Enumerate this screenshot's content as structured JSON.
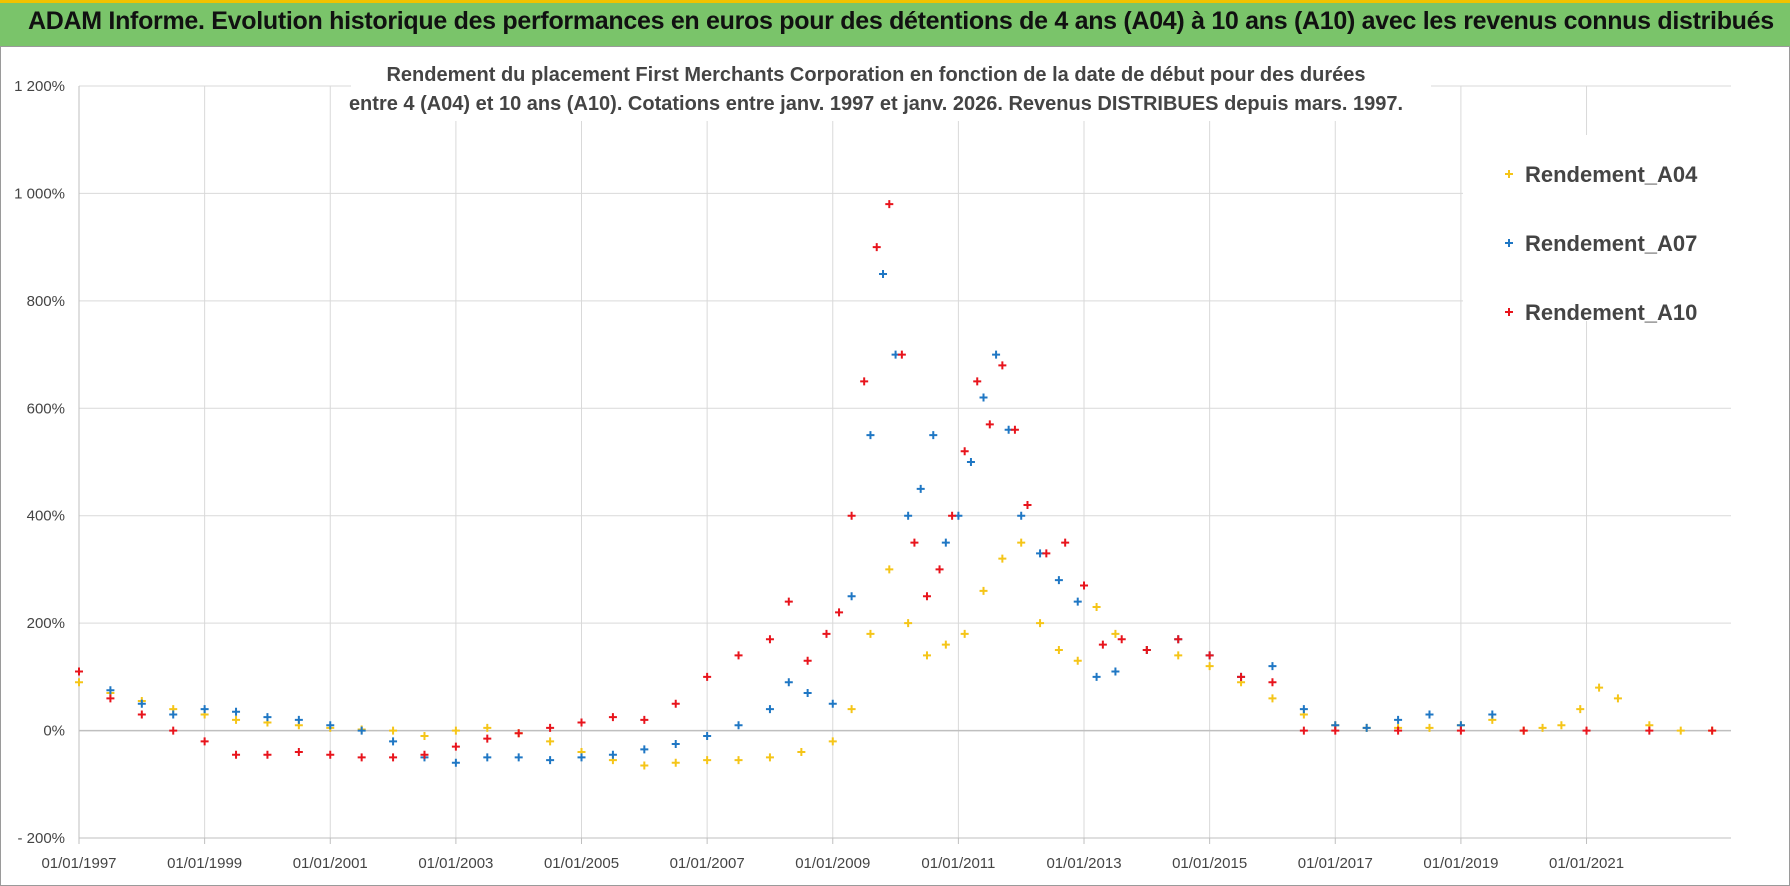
{
  "banner": {
    "title": "ADAM Informe. Evolution historique des performances en euros pour des détentions de 4 ans (A04) à 10 ans (A10) avec les revenus connus distribués"
  },
  "colors": {
    "banner_bg": "#7ac46a",
    "banner_accent": "#f2c200",
    "A04": "#f5c518",
    "A07": "#1f77c4",
    "A10": "#e8141c"
  },
  "chart_data": {
    "type": "scatter",
    "title_line1": "Rendement du placement First Merchants Corporation en fonction de la date de début pour des durées",
    "title_line2": "entre 4 (A04) et 10 ans (A10).  Cotations entre janv. 1997 et janv. 2026. Revenus DISTRIBUES depuis mars. 1997.",
    "xlabel": "",
    "ylabel": "",
    "xlim": [
      1997.0,
      2023.3
    ],
    "ylim": [
      -200,
      1200
    ],
    "y_ticks": [
      -200,
      0,
      200,
      400,
      600,
      800,
      1000,
      1200
    ],
    "y_tick_labels": [
      "- 200%",
      "0%",
      "200%",
      "400%",
      "600%",
      "800%",
      "1 000%",
      "1 200%"
    ],
    "x_ticks": [
      1997,
      1999,
      2001,
      2003,
      2005,
      2007,
      2009,
      2011,
      2013,
      2015,
      2017,
      2019,
      2021
    ],
    "x_tick_labels": [
      "01/01/1997",
      "01/01/1999",
      "01/01/2001",
      "01/01/2003",
      "01/01/2005",
      "01/01/2007",
      "01/01/2009",
      "01/01/2011",
      "01/01/2013",
      "01/01/2015",
      "01/01/2017",
      "01/01/2019",
      "01/01/2021"
    ],
    "legend_position": "top-right",
    "marker": "+",
    "series": [
      {
        "name": "Rendement_A04",
        "color": "#f5c518",
        "x": [
          1997.0,
          1997.5,
          1998.0,
          1998.5,
          1999.0,
          1999.5,
          2000.0,
          2000.5,
          2001.0,
          2001.5,
          2002.0,
          2002.5,
          2003.0,
          2003.5,
          2004.0,
          2004.5,
          2005.0,
          2005.5,
          2006.0,
          2006.5,
          2007.0,
          2007.5,
          2008.0,
          2008.5,
          2009.0,
          2009.3,
          2009.6,
          2009.9,
          2010.2,
          2010.5,
          2010.8,
          2011.1,
          2011.4,
          2011.7,
          2012.0,
          2012.3,
          2012.6,
          2012.9,
          2013.2,
          2013.5,
          2014.0,
          2014.5,
          2015.0,
          2015.5,
          2016.0,
          2016.5,
          2017.0,
          2017.5,
          2018.0,
          2018.5,
          2019.0,
          2019.5,
          2020.0,
          2020.3,
          2020.6,
          2020.9,
          2021.2,
          2021.5,
          2022.0,
          2022.5,
          2023.0
        ],
        "values": [
          90,
          70,
          55,
          40,
          30,
          20,
          15,
          10,
          5,
          2,
          0,
          -10,
          0,
          5,
          -5,
          -20,
          -40,
          -55,
          -65,
          -60,
          -55,
          -55,
          -50,
          -40,
          -20,
          40,
          180,
          300,
          200,
          140,
          160,
          180,
          260,
          320,
          350,
          200,
          150,
          130,
          230,
          180,
          150,
          140,
          120,
          90,
          60,
          30,
          10,
          5,
          5,
          5,
          10,
          20,
          0,
          5,
          10,
          40,
          80,
          60,
          10,
          0,
          0
        ]
      },
      {
        "name": "Rendement_A07",
        "color": "#1f77c4",
        "x": [
          1997.0,
          1997.5,
          1998.0,
          1998.5,
          1999.0,
          1999.5,
          2000.0,
          2000.5,
          2001.0,
          2001.5,
          2002.0,
          2002.5,
          2003.0,
          2003.5,
          2004.0,
          2004.5,
          2005.0,
          2005.5,
          2006.0,
          2006.5,
          2007.0,
          2007.5,
          2008.0,
          2008.3,
          2008.6,
          2009.0,
          2009.3,
          2009.6,
          2009.8,
          2010.0,
          2010.2,
          2010.4,
          2010.6,
          2010.8,
          2011.0,
          2011.2,
          2011.4,
          2011.6,
          2011.8,
          2012.0,
          2012.3,
          2012.6,
          2012.9,
          2013.2,
          2013.5,
          2014.0,
          2014.5,
          2015.0,
          2015.5,
          2016.0,
          2016.5,
          2017.0,
          2017.5,
          2018.0,
          2018.5,
          2019.0,
          2019.5
        ],
        "values": [
          110,
          75,
          50,
          30,
          40,
          35,
          25,
          20,
          10,
          0,
          -20,
          -50,
          -60,
          -50,
          -50,
          -55,
          -50,
          -45,
          -35,
          -25,
          -10,
          10,
          40,
          90,
          70,
          50,
          250,
          550,
          850,
          700,
          400,
          450,
          550,
          350,
          400,
          500,
          620,
          700,
          560,
          400,
          330,
          280,
          240,
          100,
          110,
          150,
          170,
          140,
          100,
          120,
          40,
          10,
          5,
          20,
          30,
          10,
          30
        ]
      },
      {
        "name": "Rendement_A10",
        "color": "#e8141c",
        "x": [
          1997.0,
          1997.5,
          1998.0,
          1998.5,
          1999.0,
          1999.5,
          2000.0,
          2000.5,
          2001.0,
          2001.5,
          2002.0,
          2002.5,
          2003.0,
          2003.5,
          2004.0,
          2004.5,
          2005.0,
          2005.5,
          2006.0,
          2006.5,
          2007.0,
          2007.5,
          2008.0,
          2008.3,
          2008.6,
          2008.9,
          2009.1,
          2009.3,
          2009.5,
          2009.7,
          2009.9,
          2010.1,
          2010.3,
          2010.5,
          2010.7,
          2010.9,
          2011.1,
          2011.3,
          2011.5,
          2011.7,
          2011.9,
          2012.1,
          2012.4,
          2012.7,
          2013.0,
          2013.3,
          2013.6,
          2014.0,
          2014.5,
          2015.0,
          2015.5,
          2016.0,
          2016.5,
          2017.0,
          2018.0,
          2019.0,
          2020.0,
          2021.0,
          2022.0,
          2023.0
        ],
        "values": [
          110,
          60,
          30,
          0,
          -20,
          -45,
          -45,
          -40,
          -45,
          -50,
          -50,
          -45,
          -30,
          -15,
          -5,
          5,
          15,
          25,
          20,
          50,
          100,
          140,
          170,
          240,
          130,
          180,
          220,
          400,
          650,
          900,
          980,
          700,
          350,
          250,
          300,
          400,
          520,
          650,
          570,
          680,
          560,
          420,
          330,
          350,
          270,
          160,
          170,
          150,
          170,
          140,
          100,
          90,
          0,
          0,
          0,
          0,
          0,
          0,
          0,
          0
        ]
      }
    ]
  }
}
